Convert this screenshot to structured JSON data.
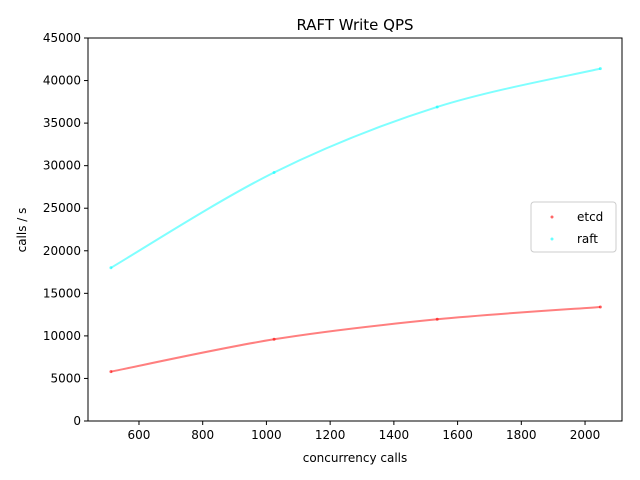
{
  "chart_data": {
    "type": "line",
    "title": "RAFT Write QPS",
    "xlabel": "concurrency calls",
    "ylabel": "calls / s",
    "xlim": [
      440,
      2116
    ],
    "ylim": [
      0,
      45000
    ],
    "x_ticks": [
      600,
      800,
      1000,
      1200,
      1400,
      1600,
      1800,
      2000
    ],
    "y_ticks": [
      0,
      5000,
      10000,
      15000,
      20000,
      25000,
      30000,
      35000,
      40000,
      45000
    ],
    "grid": false,
    "legend_position": "center-right",
    "series": [
      {
        "name": "etcd",
        "color": "#ff0000",
        "points": [
          {
            "x": 512,
            "y": 5800
          },
          {
            "x": 1024,
            "y": 9600
          },
          {
            "x": 1536,
            "y": 11950
          },
          {
            "x": 2048,
            "y": 13400
          }
        ]
      },
      {
        "name": "raft",
        "color": "#00ffff",
        "points": [
          {
            "x": 512,
            "y": 18000
          },
          {
            "x": 1024,
            "y": 29200
          },
          {
            "x": 1536,
            "y": 36900
          },
          {
            "x": 2048,
            "y": 41400
          }
        ]
      }
    ]
  }
}
